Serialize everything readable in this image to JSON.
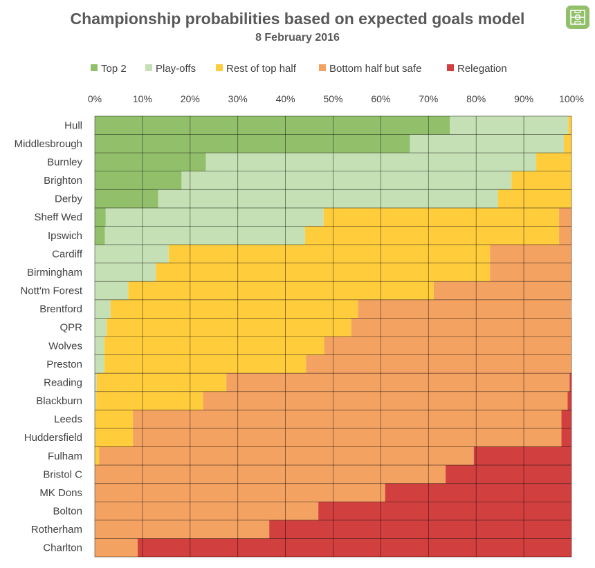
{
  "title": "Championship probabilities based on expected goals model",
  "subtitle": "8 February 2016",
  "logo_icon": "football-pitch-icon",
  "chart_data": {
    "type": "bar",
    "orientation": "horizontal",
    "stacked": "100%",
    "title": "Championship probabilities based on expected goals model",
    "subtitle": "8 February 2016",
    "legend_position": "top",
    "x_axis_position": "top",
    "xlim": [
      0,
      100
    ],
    "xticks": [
      "0%",
      "10%",
      "20%",
      "30%",
      "40%",
      "50%",
      "60%",
      "70%",
      "80%",
      "90%",
      "100%"
    ],
    "grid": true,
    "categories": [
      "Hull",
      "Middlesbrough",
      "Burnley",
      "Brighton",
      "Derby",
      "Sheff Wed",
      "Ipswich",
      "Cardiff",
      "Birmingham",
      "Nott'm Forest",
      "Brentford",
      "QPR",
      "Wolves",
      "Preston",
      "Reading",
      "Blackburn",
      "Leeds",
      "Huddersfield",
      "Fulham",
      "Bristol C",
      "MK Dons",
      "Bolton",
      "Rotherham",
      "Charlton"
    ],
    "series": [
      {
        "name": "Top 2",
        "color": "#92c06a",
        "values": [
          74.5,
          66.1,
          23.3,
          18.2,
          13.3,
          2.3,
          2.1,
          0,
          0,
          0,
          0,
          0,
          0,
          0,
          0,
          0,
          0,
          0,
          0,
          0,
          0,
          0,
          0,
          0
        ]
      },
      {
        "name": "Play-offs",
        "color": "#c5e0b4",
        "values": [
          24.8,
          32.3,
          69.3,
          69.2,
          71.3,
          45.7,
          42.0,
          15.5,
          12.8,
          7.0,
          3.3,
          2.5,
          2.0,
          2.0,
          0.4,
          0.3,
          0,
          0,
          0,
          0,
          0,
          0,
          0,
          0
        ]
      },
      {
        "name": "Rest of top half",
        "color": "#ffcd3c",
        "values": [
          0.7,
          1.6,
          7.4,
          12.6,
          15.4,
          49.4,
          53.3,
          67.4,
          70.1,
          64.1,
          51.9,
          51.3,
          46.1,
          42.3,
          27.2,
          22.4,
          8.0,
          8.0,
          0.9,
          0,
          0,
          0,
          0,
          0
        ]
      },
      {
        "name": "Bottom half but safe",
        "color": "#f4a261",
        "values": [
          0,
          0,
          0,
          0,
          0,
          2.6,
          2.6,
          17.1,
          17.1,
          28.9,
          44.7,
          46.2,
          51.9,
          55.7,
          72.0,
          76.5,
          89.9,
          89.9,
          78.6,
          73.6,
          60.9,
          46.9,
          36.6,
          9.0
        ]
      },
      {
        "name": "Relegation",
        "color": "#d13f3e",
        "values": [
          0,
          0,
          0,
          0,
          0,
          0,
          0,
          0,
          0,
          0,
          0,
          0,
          0,
          0,
          0.4,
          0.8,
          2.1,
          2.1,
          20.5,
          26.4,
          39.1,
          53.1,
          63.4,
          91.0
        ]
      }
    ]
  }
}
